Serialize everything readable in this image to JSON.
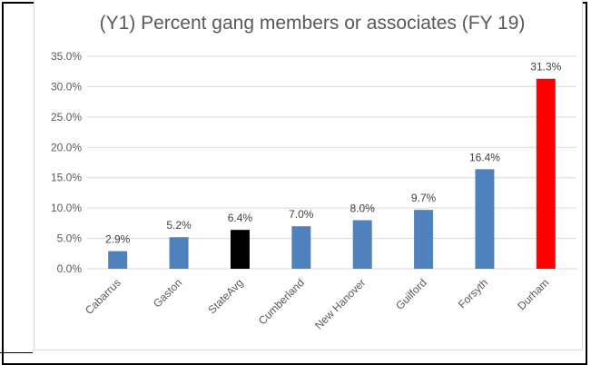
{
  "chart_data": {
    "type": "bar",
    "title": "(Y1) Percent gang members or associates (FY 19)",
    "categories": [
      "Cabarrus",
      "Gaston",
      "StateAvg",
      "Cumberland",
      "New Hanover",
      "Guilford",
      "Forsyth",
      "Durham"
    ],
    "values": [
      2.9,
      5.2,
      6.4,
      7.0,
      8.0,
      9.7,
      16.4,
      31.3
    ],
    "data_labels": [
      "2.9%",
      "5.2%",
      "6.4%",
      "7.0%",
      "8.0%",
      "9.7%",
      "16.4%",
      "31.3%"
    ],
    "bar_colors": [
      "#4f81bd",
      "#4f81bd",
      "#000000",
      "#4f81bd",
      "#4f81bd",
      "#4f81bd",
      "#4f81bd",
      "#ff0000"
    ],
    "ylim": [
      0,
      35
    ],
    "yticks": [
      0,
      5,
      10,
      15,
      20,
      25,
      30,
      35
    ],
    "ytick_labels": [
      "0.0%",
      "5.0%",
      "10.0%",
      "15.0%",
      "20.0%",
      "25.0%",
      "30.0%",
      "35.0%"
    ],
    "xlabel": "",
    "ylabel": "",
    "grid": true,
    "legend": "none"
  },
  "colors": {
    "gridline": "#d9d9d9",
    "axis_text": "#595959",
    "title_text": "#595959"
  }
}
